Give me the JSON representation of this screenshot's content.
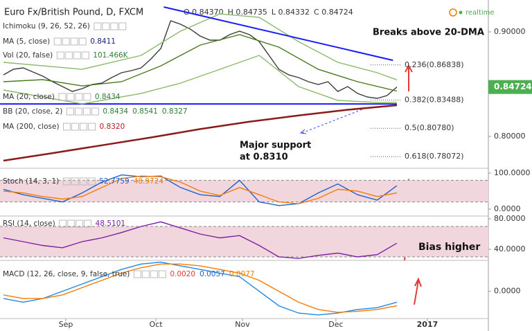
{
  "header": {
    "title": "Euro Fx/British Pound, D, FXCM",
    "ohlc": [
      "O 0.84370",
      "H 0.84735",
      "L 0.84332",
      "C 0.84724"
    ],
    "status": "realtime"
  },
  "chart_data": [
    {
      "type": "line",
      "xlim": [
        -0.35,
        49.3
      ],
      "ylim": [
        0.7695,
        0.9305
      ],
      "yticks": [
        {
          "value": 0.9,
          "label": "0.90000"
        },
        {
          "value": 0.8,
          "label": "0.80000"
        }
      ],
      "last_price": {
        "value": 0.84724,
        "label": "0.84724",
        "color": "#4caf50"
      },
      "legend": [
        {
          "label": "Ichimoku (9, 26, 52, 26)",
          "readout": [],
          "colors": []
        },
        {
          "label": "MA (5, close)",
          "readout": [
            "0.8411"
          ],
          "colors": [
            "#1a237e"
          ]
        },
        {
          "label": "Vol (20, false)",
          "readout": [
            "101.466K"
          ],
          "colors": [
            "#2e7d32"
          ]
        },
        {
          "label": "MA (20, close)",
          "readout": [
            "0.8434"
          ],
          "colors": [
            "#2e7d32"
          ]
        },
        {
          "label": "BB (20, close, 2)",
          "readout": [
            "0.8434",
            "0.8541",
            "0.8327"
          ],
          "colors": [
            "#2e7d32",
            "#2e7d32",
            "#2e7d32"
          ]
        },
        {
          "label": "MA (200, close)",
          "readout": [
            "0.8320"
          ],
          "colors": [
            "#b71c1c"
          ]
        }
      ],
      "series": [
        {
          "color": "#3a3a3a",
          "x": [
            0,
            1,
            2,
            3,
            4,
            5,
            6,
            7,
            8,
            9,
            10,
            11,
            12,
            13,
            14,
            15,
            16,
            17,
            18,
            19,
            20,
            21,
            22,
            23,
            24,
            25,
            26,
            27,
            28,
            29,
            30,
            31,
            32,
            33,
            34,
            35,
            36,
            37,
            38,
            39,
            40
          ],
          "values": [
            0.8589,
            0.8642,
            0.8656,
            0.8616,
            0.8576,
            0.8523,
            0.8477,
            0.843,
            0.8457,
            0.8497,
            0.851,
            0.8563,
            0.8609,
            0.8629,
            0.8656,
            0.8742,
            0.8841,
            0.9106,
            0.9073,
            0.9026,
            0.896,
            0.8921,
            0.8921,
            0.8974,
            0.9007,
            0.8974,
            0.8907,
            0.8775,
            0.8642,
            0.8589,
            0.8563,
            0.8523,
            0.8497,
            0.8523,
            0.843,
            0.8477,
            0.8411,
            0.8377,
            0.8364,
            0.8391,
            0.8472
          ]
        },
        {
          "color": "#4a7a1e",
          "x": [
            0,
            4,
            8,
            12,
            16,
            20,
            24,
            28,
            32,
            36,
            40
          ],
          "values": [
            0.8523,
            0.8543,
            0.8483,
            0.8523,
            0.8675,
            0.8874,
            0.8974,
            0.8854,
            0.8642,
            0.8523,
            0.8434
          ]
        },
        {
          "color": "#8aba6a",
          "x": [
            0,
            8,
            14,
            18,
            22,
            26,
            30,
            34,
            38,
            40
          ],
          "values": [
            0.8709,
            0.8642,
            0.8775,
            0.9007,
            0.9172,
            0.9139,
            0.8907,
            0.8709,
            0.8609,
            0.8541
          ]
        },
        {
          "color": "#8aba6a",
          "x": [
            0,
            8,
            14,
            18,
            22,
            26,
            30,
            34,
            38,
            40
          ],
          "values": [
            0.8444,
            0.8311,
            0.8411,
            0.851,
            0.8642,
            0.8775,
            0.8477,
            0.8344,
            0.8325,
            0.8327
          ]
        },
        {
          "color": "#8b1a1a",
          "x": [
            0,
            5,
            10,
            15,
            20,
            25,
            30,
            35,
            40
          ],
          "values": [
            0.7768,
            0.784,
            0.7915,
            0.799,
            0.807,
            0.814,
            0.82,
            0.8255,
            0.8298
          ]
        }
      ],
      "trendline": {
        "color": "#1a1aff",
        "x": [
          16.3,
          39.6
        ],
        "values": [
          0.9238,
          0.8728
        ]
      },
      "support": {
        "color": "#1a1aff",
        "value": 0.831
      },
      "levels": [
        {
          "value": 0.86838,
          "label": "0.236(0.86838)"
        },
        {
          "value": 0.83488,
          "label": "0.382(0.83488)"
        },
        {
          "value": 0.8078,
          "label": "0.5(0.80780)"
        },
        {
          "value": 0.78072,
          "label": "0.618(0.78072)"
        }
      ],
      "annotations": [
        {
          "text": [
            "Breaks above 20-DMA"
          ]
        },
        {
          "text": [
            "Major support",
            "at 0.8310"
          ]
        }
      ]
    },
    {
      "type": "line",
      "xlim": [
        -0.35,
        49.3
      ],
      "ylim": [
        -19.2,
        113.5
      ],
      "yticks": [
        {
          "value": 100,
          "label": "100.0000"
        },
        {
          "value": 0,
          "label": "0.0000"
        }
      ],
      "band": [
        20,
        80
      ],
      "legend": [
        {
          "label": "Stoch (14, 3, 1)",
          "readout": [
            "52.7759",
            "48.9724"
          ],
          "colors": [
            "#1e63c9",
            "#f57c00"
          ]
        }
      ],
      "series": [
        {
          "color": "#1e63c9",
          "x": [
            0,
            2,
            4,
            6,
            8,
            10,
            12,
            14,
            16,
            18,
            20,
            22,
            24,
            26,
            28,
            30,
            32,
            34,
            36,
            38,
            40
          ],
          "values": [
            55,
            40,
            30,
            20,
            45,
            75,
            95,
            90,
            92,
            60,
            40,
            35,
            80,
            20,
            10,
            15,
            45,
            70,
            40,
            25,
            65
          ]
        },
        {
          "color": "#f57c00",
          "x": [
            0,
            2,
            4,
            6,
            8,
            10,
            12,
            14,
            16,
            18,
            20,
            22,
            24,
            26,
            28,
            30,
            32,
            34,
            36,
            38,
            40
          ],
          "values": [
            50,
            45,
            35,
            28,
            35,
            60,
            85,
            92,
            90,
            75,
            50,
            38,
            60,
            40,
            20,
            15,
            30,
            55,
            50,
            35,
            45
          ]
        }
      ],
      "annotations": []
    },
    {
      "type": "line",
      "xlim": [
        -0.35,
        49.3
      ],
      "ylim": [
        25.5,
        83.6
      ],
      "yticks": [
        {
          "value": 80,
          "label": "80.0000"
        },
        {
          "value": 40,
          "label": "40.0000"
        }
      ],
      "band": [
        30,
        70
      ],
      "legend": [
        {
          "label": "RSI (14, close)",
          "readout": [
            "48.5101"
          ],
          "colors": [
            "#7b1fa2"
          ]
        }
      ],
      "series": [
        {
          "color": "#7b1fa2",
          "x": [
            0,
            2,
            4,
            6,
            8,
            10,
            12,
            14,
            16,
            18,
            20,
            22,
            24,
            26,
            28,
            30,
            32,
            34,
            36,
            38,
            40
          ],
          "values": [
            55,
            50,
            45,
            42,
            50,
            55,
            62,
            70,
            76,
            68,
            60,
            55,
            58,
            45,
            30,
            28,
            32,
            35,
            30,
            33,
            48
          ]
        }
      ],
      "annotations": [
        {
          "text": [
            "Bias higher"
          ]
        }
      ]
    },
    {
      "type": "line",
      "xlim": [
        -0.35,
        49.3
      ],
      "ylim": [
        -0.0075,
        0.0085
      ],
      "yticks": [
        {
          "value": 0,
          "label": "0.0000"
        }
      ],
      "xticks": [
        {
          "value": 6.34,
          "label": "Sep"
        },
        {
          "value": 15.5,
          "label": "Oct"
        },
        {
          "value": 24.3,
          "label": "Nov"
        },
        {
          "value": 33.8,
          "label": "Dec"
        },
        {
          "value": 43.1,
          "label": "2017"
        }
      ],
      "legend": [
        {
          "label": "MACD (12, 26, close, 9, false, true)",
          "readout": [
            "0.0020",
            "0.0057",
            "0.0077"
          ],
          "colors": [
            "#e53935",
            "#1e63c9",
            "#f57c00"
          ]
        }
      ],
      "series": [
        {
          "color": "#1e88e5",
          "x": [
            0,
            2,
            4,
            6,
            8,
            10,
            12,
            14,
            16,
            18,
            20,
            22,
            24,
            26,
            28,
            30,
            32,
            34,
            36,
            38,
            40
          ],
          "values": [
            -0.002,
            -0.003,
            -0.002,
            0,
            0.002,
            0.004,
            0.006,
            0.0075,
            0.008,
            0.007,
            0.006,
            0.005,
            0.004,
            0,
            -0.004,
            -0.006,
            -0.0065,
            -0.006,
            -0.005,
            -0.0045,
            -0.003
          ]
        },
        {
          "color": "#f57c00",
          "x": [
            0,
            2,
            4,
            6,
            8,
            10,
            12,
            14,
            16,
            18,
            20,
            22,
            24,
            26,
            28,
            30,
            32,
            34,
            36,
            38,
            40
          ],
          "values": [
            -0.001,
            -0.002,
            -0.002,
            -0.001,
            0.001,
            0.003,
            0.005,
            0.0065,
            0.0075,
            0.0075,
            0.007,
            0.006,
            0.005,
            0.003,
            0,
            -0.003,
            -0.005,
            -0.0058,
            -0.0055,
            -0.005,
            -0.004
          ]
        }
      ],
      "annotations": []
    }
  ]
}
